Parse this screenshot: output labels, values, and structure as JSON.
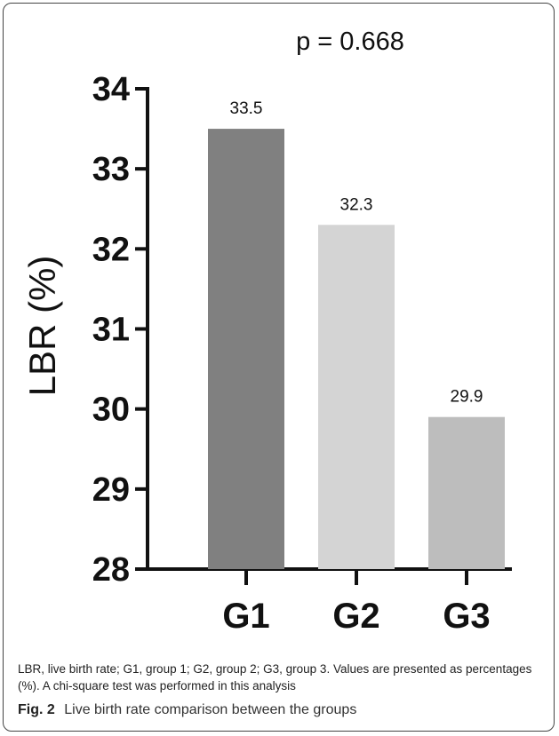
{
  "chart_data": {
    "type": "bar",
    "categories": [
      "G1",
      "G2",
      "G3"
    ],
    "values": [
      33.5,
      32.3,
      29.9
    ],
    "value_labels": [
      "33.5",
      "32.3",
      "29.9"
    ],
    "bar_colors": [
      "#808080",
      "#d4d4d4",
      "#bdbdbd"
    ],
    "ylabel": "LBR (%)",
    "ylim": [
      28,
      34
    ],
    "yticks": [
      28,
      29,
      30,
      31,
      32,
      33,
      34
    ],
    "annotation": "p = 0.668",
    "grid": false,
    "legend": "none"
  },
  "footnote": "LBR, live birth rate; G1, group 1; G2, group 2; G3, group 3. Values are presented as percentages (%). A chi-square test was performed in this analysis",
  "caption": {
    "label": "Fig. 2",
    "text": "Live birth rate comparison between the groups"
  }
}
